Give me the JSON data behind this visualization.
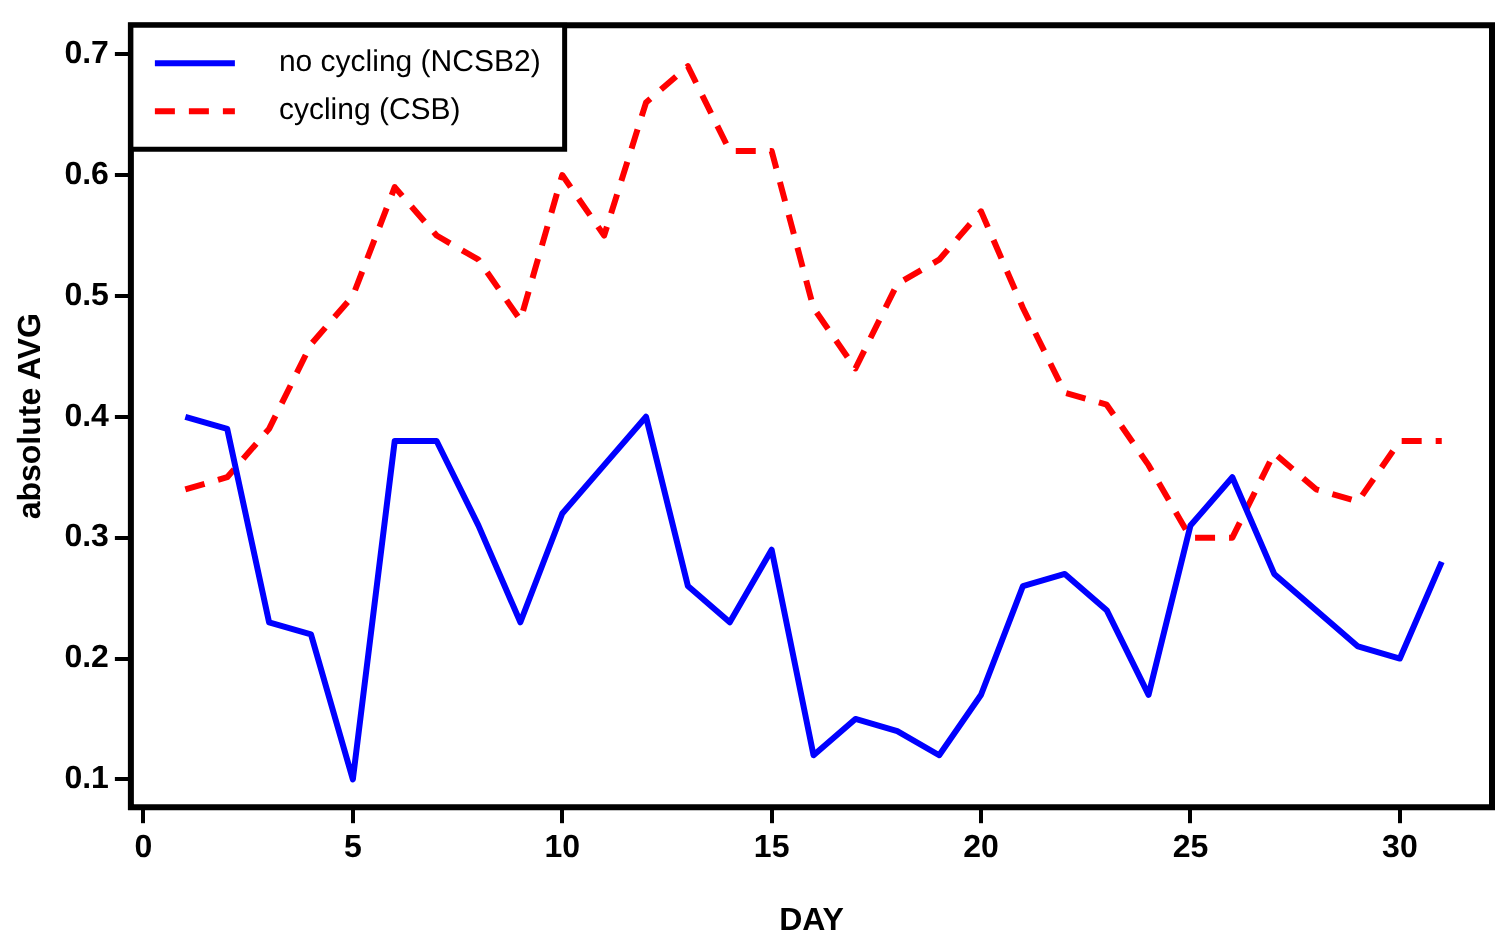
{
  "chart_data": {
    "type": "line",
    "xlabel": "DAY",
    "ylabel": "absolute AVG",
    "x": [
      1,
      2,
      3,
      4,
      5,
      6,
      7,
      8,
      9,
      10,
      11,
      12,
      13,
      14,
      15,
      16,
      17,
      18,
      19,
      20,
      21,
      22,
      23,
      24,
      25,
      26,
      27,
      28,
      29,
      30,
      31
    ],
    "series": [
      {
        "name": "no cycling (NCSB2)",
        "color": "#0000ff",
        "line_style": "solid",
        "values": [
          0.4,
          0.39,
          0.23,
          0.22,
          0.1,
          0.38,
          0.38,
          0.31,
          0.23,
          0.32,
          0.36,
          0.4,
          0.26,
          0.23,
          0.29,
          0.12,
          0.15,
          0.14,
          0.12,
          0.17,
          0.26,
          0.27,
          0.24,
          0.17,
          0.31,
          0.35,
          0.27,
          0.24,
          0.21,
          0.2,
          0.28
        ]
      },
      {
        "name": "cycling (CSB)",
        "color": "#ff0000",
        "line_style": "dashed",
        "values": [
          0.34,
          0.35,
          0.39,
          0.46,
          0.5,
          0.59,
          0.55,
          0.53,
          0.48,
          0.6,
          0.55,
          0.66,
          0.69,
          0.62,
          0.62,
          0.49,
          0.44,
          0.51,
          0.53,
          0.57,
          0.49,
          0.42,
          0.41,
          0.36,
          0.3,
          0.3,
          0.37,
          0.34,
          0.33,
          0.38,
          0.38
        ]
      }
    ],
    "xlim": [
      -0.3,
      32.2
    ],
    "xticks": [
      0,
      5,
      10,
      15,
      20,
      25,
      30
    ],
    "ylim": [
      0.077,
      0.724
    ],
    "yticks": [
      0.1,
      0.2,
      0.3,
      0.4,
      0.5,
      0.6,
      0.7
    ],
    "grid": false,
    "legend": "top left",
    "marker": "none"
  }
}
